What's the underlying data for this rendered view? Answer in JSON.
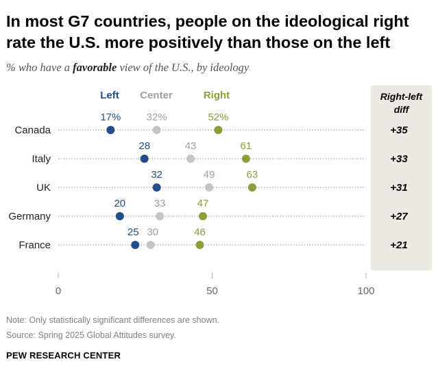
{
  "title": "In most G7 countries, people on the ideological right rate the U.S. more positively than those on the left",
  "subtitle": {
    "prefix": "% who have a ",
    "emphasis": "favorable",
    "suffix": " view of the U.S., by ideology"
  },
  "chart_data": {
    "type": "dot",
    "series": [
      {
        "name": "Left",
        "color": "#1f4e8a"
      },
      {
        "name": "Center",
        "color": "#c4c4c4"
      },
      {
        "name": "Right",
        "color": "#8f9c3a"
      }
    ],
    "label_colors": {
      "Left": "#1f4e8a",
      "Center": "#a0a0a0",
      "Right": "#8f9c3a"
    },
    "diff_header": "Right-left diff",
    "diff_header_lines": [
      "Right-left",
      "diff"
    ],
    "rows": [
      {
        "country": "Canada",
        "left": 17,
        "center": 32,
        "right": 52,
        "diff": "+35",
        "labels": {
          "left": "17%",
          "center": "32%",
          "right": "52%"
        }
      },
      {
        "country": "Italy",
        "left": 28,
        "center": 43,
        "right": 61,
        "diff": "+33",
        "labels": {
          "left": "28",
          "center": "43",
          "right": "61"
        }
      },
      {
        "country": "UK",
        "left": 32,
        "center": 49,
        "right": 63,
        "diff": "+31",
        "labels": {
          "left": "32",
          "center": "49",
          "right": "63"
        }
      },
      {
        "country": "Germany",
        "left": 20,
        "center": 33,
        "right": 47,
        "diff": "+27",
        "labels": {
          "left": "20",
          "center": "33",
          "right": "47"
        }
      },
      {
        "country": "France",
        "left": 25,
        "center": 30,
        "right": 46,
        "diff": "+21",
        "labels": {
          "left": "25",
          "center": "30",
          "right": "46"
        }
      }
    ],
    "x_ticks": [
      0,
      50,
      100
    ],
    "x_tick_labels": [
      "0",
      "50",
      "100"
    ],
    "xlim": [
      0,
      100
    ]
  },
  "note": "Note: Only statistically significant differences are shown.",
  "source": "Source: Spring 2025 Global Attitudes survey.",
  "brand": "PEW RESEARCH CENTER"
}
